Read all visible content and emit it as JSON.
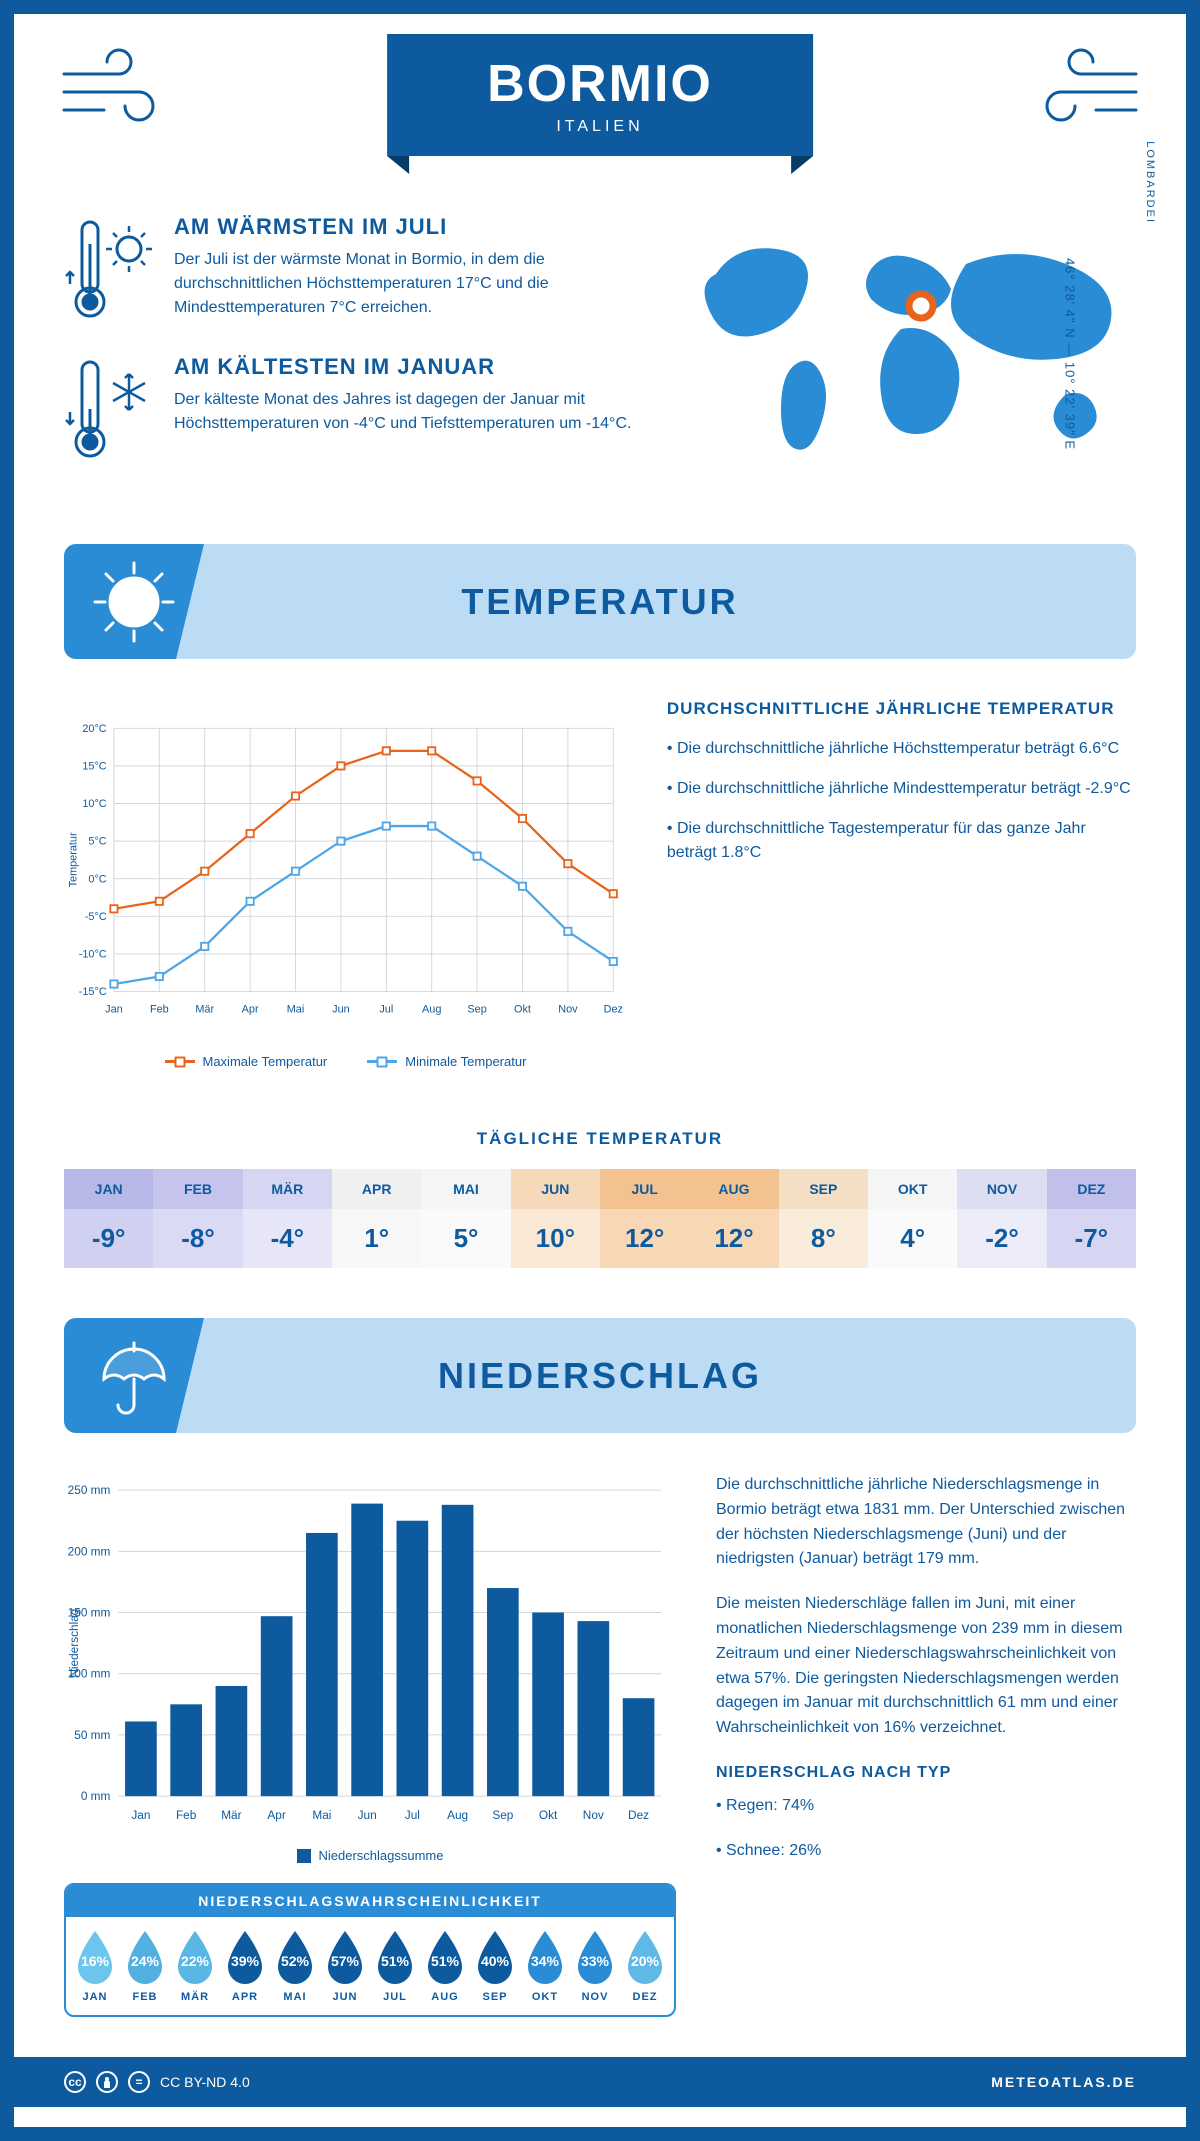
{
  "colors": {
    "primary": "#0d5a9e",
    "accent": "#2a8cd4",
    "banner_bg": "#bcdcf5",
    "max_line": "#e8641b",
    "min_line": "#4da6e8",
    "bar_fill": "#0d5a9e",
    "grid": "#d0d6dc"
  },
  "header": {
    "city": "BORMIO",
    "country": "ITALIEN"
  },
  "coords": {
    "lat": "46° 28' 4\" N",
    "lon": "10° 22' 39\" E",
    "region": "LOMBARDEI"
  },
  "intro": {
    "warm": {
      "title": "AM WÄRMSTEN IM JULI",
      "text": "Der Juli ist der wärmste Monat in Bormio, in dem die durchschnittlichen Höchsttemperaturen 17°C und die Mindesttemperaturen 7°C erreichen."
    },
    "cold": {
      "title": "AM KÄLTESTEN IM JANUAR",
      "text": "Der kälteste Monat des Jahres ist dagegen der Januar mit Höchsttemperaturen von -4°C und Tiefsttemperaturen um -14°C."
    }
  },
  "temp_section": {
    "banner_title": "TEMPERATUR",
    "chart": {
      "type": "line",
      "months": [
        "Jan",
        "Feb",
        "Mär",
        "Apr",
        "Mai",
        "Jun",
        "Jul",
        "Aug",
        "Sep",
        "Okt",
        "Nov",
        "Dez"
      ],
      "y_label": "Temperatur",
      "ylim": [
        -15,
        20
      ],
      "ytick_step": 5,
      "series": {
        "max": {
          "label": "Maximale Temperatur",
          "color": "#e8641b",
          "values": [
            -4,
            -3,
            1,
            6,
            11,
            15,
            17,
            17,
            13,
            8,
            2,
            -2
          ]
        },
        "min": {
          "label": "Minimale Temperatur",
          "color": "#4da6e8",
          "values": [
            -14,
            -13,
            -9,
            -3,
            1,
            5,
            7,
            7,
            3,
            -1,
            -7,
            -11
          ]
        }
      }
    },
    "facts": {
      "title": "DURCHSCHNITTLICHE JÄHRLICHE TEMPERATUR",
      "bullets": [
        "Die durchschnittliche jährliche Höchsttemperatur beträgt 6.6°C",
        "Die durchschnittliche jährliche Mindesttemperatur beträgt -2.9°C",
        "Die durchschnittliche Tagestemperatur für das ganze Jahr beträgt 1.8°C"
      ]
    },
    "daily": {
      "title": "TÄGLICHE TEMPERATUR",
      "months": [
        "JAN",
        "FEB",
        "MÄR",
        "APR",
        "MAI",
        "JUN",
        "JUL",
        "AUG",
        "SEP",
        "OKT",
        "NOV",
        "DEZ"
      ],
      "temps": [
        "-9°",
        "-8°",
        "-4°",
        "1°",
        "5°",
        "10°",
        "12°",
        "12°",
        "8°",
        "4°",
        "-2°",
        "-7°"
      ],
      "head_colors": [
        "#b8b8e8",
        "#c4c4ec",
        "#d6d6f2",
        "#f0f0f0",
        "#f5f5f5",
        "#f5d9b8",
        "#f2c290",
        "#f2c290",
        "#f5dfc4",
        "#f5f5f5",
        "#dedef2",
        "#c0c0ea"
      ],
      "body_colors": [
        "#d0d0f0",
        "#dadaf4",
        "#e6e6f8",
        "#f7f7f7",
        "#fafafa",
        "#fae8d4",
        "#f8d8b4",
        "#f8d8b4",
        "#faecda",
        "#fafafa",
        "#ececf8",
        "#d6d6f2"
      ]
    }
  },
  "precip_section": {
    "banner_title": "NIEDERSCHLAG",
    "chart": {
      "type": "bar",
      "months": [
        "Jan",
        "Feb",
        "Mär",
        "Apr",
        "Mai",
        "Jun",
        "Jul",
        "Aug",
        "Sep",
        "Okt",
        "Nov",
        "Dez"
      ],
      "y_label": "Niederschlag",
      "ylim": [
        0,
        250
      ],
      "ytick_step": 50,
      "values": [
        61,
        75,
        90,
        147,
        215,
        239,
        225,
        238,
        170,
        150,
        143,
        80
      ],
      "legend": "Niederschlagssumme",
      "bar_color": "#0d5a9e"
    },
    "text": {
      "p1": "Die durchschnittliche jährliche Niederschlagsmenge in Bormio beträgt etwa 1831 mm. Der Unterschied zwischen der höchsten Niederschlagsmenge (Juni) und der niedrigsten (Januar) beträgt 179 mm.",
      "p2": "Die meisten Niederschläge fallen im Juni, mit einer monatlichen Niederschlagsmenge von 239 mm in diesem Zeitraum und einer Niederschlagswahrscheinlichkeit von etwa 57%. Die geringsten Niederschlagsmengen werden dagegen im Januar mit durchschnittlich 61 mm und einer Wahrscheinlichkeit von 16% verzeichnet.",
      "type_title": "NIEDERSCHLAG NACH TYP",
      "type_rain": "Regen: 74%",
      "type_snow": "Schnee: 26%"
    },
    "probability": {
      "title": "NIEDERSCHLAGSWAHRSCHEINLICHKEIT",
      "months": [
        "JAN",
        "FEB",
        "MÄR",
        "APR",
        "MAI",
        "JUN",
        "JUL",
        "AUG",
        "SEP",
        "OKT",
        "NOV",
        "DEZ"
      ],
      "values": [
        "16%",
        "24%",
        "22%",
        "39%",
        "52%",
        "57%",
        "51%",
        "51%",
        "40%",
        "34%",
        "33%",
        "20%"
      ],
      "colors": [
        "#6cc5ed",
        "#52b0e0",
        "#5ab6e4",
        "#0d5a9e",
        "#0d5a9e",
        "#0d5a9e",
        "#0d5a9e",
        "#0d5a9e",
        "#0d5a9e",
        "#2a8cd4",
        "#2a8cd4",
        "#60b8e6"
      ]
    }
  },
  "footer": {
    "license": "CC BY-ND 4.0",
    "site": "METEOATLAS.DE"
  }
}
